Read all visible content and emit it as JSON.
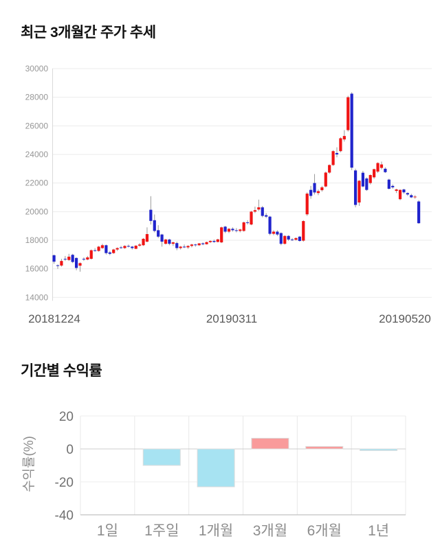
{
  "page": {
    "background": "#ffffff"
  },
  "chart_data": [
    {
      "type": "candlestick",
      "title": "최근 3개월간 주가 추세",
      "x_labels": [
        "20181224",
        "20190311",
        "20190520"
      ],
      "y_ticks": [
        30000,
        28000,
        26000,
        24000,
        22000,
        20000,
        18000,
        16000,
        14000
      ],
      "ylim": [
        14000,
        30000
      ],
      "grid": "horizontal",
      "up_color": "#f01414",
      "down_color": "#2024cc",
      "wick_color": "#999999",
      "axis_color": "#d9d9d9",
      "grid_color": "#ebebeb",
      "y_label_color": "#969696",
      "x_label_color": "#595959",
      "candles_ohlc": [
        [
          16950,
          17000,
          16350,
          16500
        ],
        [
          16250,
          16300,
          16000,
          16200
        ],
        [
          16230,
          16700,
          16150,
          16550
        ],
        [
          16700,
          16900,
          16550,
          16650
        ],
        [
          16620,
          17050,
          16550,
          16850
        ],
        [
          16980,
          17050,
          16400,
          16480
        ],
        [
          16760,
          16800,
          15900,
          16060
        ],
        [
          16220,
          16450,
          15800,
          16400
        ],
        [
          16700,
          16800,
          16550,
          16650
        ],
        [
          16650,
          16900,
          16600,
          16800
        ],
        [
          16700,
          17350,
          16650,
          17300
        ],
        [
          17300,
          17450,
          17200,
          17250
        ],
        [
          17250,
          17600,
          17200,
          17550
        ],
        [
          17450,
          17750,
          17400,
          17650
        ],
        [
          17650,
          17700,
          17000,
          17100
        ],
        [
          17150,
          17250,
          16950,
          17050
        ],
        [
          17100,
          17400,
          17050,
          17350
        ],
        [
          17350,
          17500,
          17250,
          17450
        ],
        [
          17500,
          17600,
          17400,
          17480
        ],
        [
          17450,
          17650,
          17400,
          17600
        ],
        [
          17600,
          17700,
          17500,
          17550
        ],
        [
          17550,
          17600,
          17350,
          17450
        ],
        [
          17400,
          17650,
          17380,
          17620
        ],
        [
          17620,
          17800,
          17550,
          17700
        ],
        [
          17650,
          18150,
          17600,
          18100
        ],
        [
          17900,
          18900,
          17850,
          18430
        ],
        [
          20130,
          21080,
          19100,
          19350
        ],
        [
          19400,
          19800,
          18550,
          18650
        ],
        [
          18700,
          19050,
          18150,
          18250
        ],
        [
          18400,
          18450,
          17550,
          17900
        ],
        [
          17750,
          18100,
          17700,
          18050
        ],
        [
          18050,
          18100,
          17650,
          17750
        ],
        [
          17750,
          17900,
          17600,
          17850
        ],
        [
          17800,
          17900,
          17300,
          17450
        ],
        [
          17450,
          17600,
          17350,
          17550
        ],
        [
          17550,
          17700,
          17450,
          17500
        ],
        [
          17500,
          17650,
          17400,
          17600
        ],
        [
          17600,
          17750,
          17500,
          17700
        ],
        [
          17700,
          17750,
          17550,
          17650
        ],
        [
          17650,
          17800,
          17600,
          17780
        ],
        [
          17780,
          17850,
          17650,
          17720
        ],
        [
          17720,
          17900,
          17700,
          17870
        ],
        [
          17870,
          18000,
          17800,
          17950
        ],
        [
          17950,
          18050,
          17820,
          17880
        ],
        [
          17880,
          18100,
          17850,
          18060
        ],
        [
          17850,
          18950,
          17800,
          18900
        ],
        [
          18950,
          19000,
          18500,
          18600
        ],
        [
          18600,
          18850,
          18500,
          18800
        ],
        [
          18800,
          18900,
          18600,
          18700
        ],
        [
          18700,
          18850,
          18550,
          18650
        ],
        [
          18650,
          18800,
          18550,
          18750
        ],
        [
          18650,
          19300,
          18600,
          19250
        ],
        [
          19250,
          19400,
          19100,
          19200
        ],
        [
          19100,
          20050,
          19050,
          20000
        ],
        [
          20000,
          20350,
          19900,
          20100
        ],
        [
          20150,
          20840,
          20050,
          20300
        ],
        [
          20300,
          20400,
          19600,
          19700
        ],
        [
          19750,
          19900,
          19550,
          19650
        ],
        [
          19650,
          19700,
          18350,
          18450
        ],
        [
          18450,
          18700,
          18350,
          18600
        ],
        [
          18600,
          18700,
          18300,
          18400
        ],
        [
          18500,
          18550,
          17650,
          17750
        ],
        [
          17750,
          18350,
          17700,
          18300
        ],
        [
          18300,
          18350,
          17950,
          18050
        ],
        [
          18050,
          18150,
          17950,
          18030
        ],
        [
          18030,
          18200,
          17980,
          18150
        ],
        [
          18250,
          18300,
          17900,
          17950
        ],
        [
          17970,
          19400,
          17900,
          19340
        ],
        [
          19810,
          21350,
          19700,
          21260
        ],
        [
          21520,
          21800,
          20900,
          21100
        ],
        [
          22000,
          22630,
          21200,
          21340
        ],
        [
          21300,
          21550,
          21150,
          21430
        ],
        [
          21500,
          21800,
          21400,
          21700
        ],
        [
          21760,
          22800,
          21700,
          22730
        ],
        [
          22730,
          23300,
          22650,
          23260
        ],
        [
          23260,
          24300,
          23200,
          24230
        ],
        [
          24100,
          24500,
          23800,
          24000
        ],
        [
          24230,
          25200,
          24150,
          25130
        ],
        [
          25050,
          25700,
          24900,
          25290
        ],
        [
          25700,
          28100,
          25600,
          28000
        ],
        [
          28250,
          28350,
          22900,
          23075
        ],
        [
          22880,
          23000,
          20300,
          20470
        ],
        [
          20640,
          22200,
          20400,
          22160
        ],
        [
          22720,
          22850,
          21700,
          21760
        ],
        [
          22320,
          22400,
          21450,
          21520
        ],
        [
          22000,
          22600,
          21900,
          22560
        ],
        [
          22400,
          23000,
          22300,
          22970
        ],
        [
          22800,
          23450,
          22700,
          23400
        ],
        [
          23060,
          23500,
          22950,
          23300
        ],
        [
          23000,
          23100,
          22700,
          22760
        ],
        [
          22240,
          22300,
          21550,
          21600
        ],
        [
          21800,
          21900,
          21600,
          21700
        ],
        [
          21450,
          21600,
          21300,
          21550
        ],
        [
          20870,
          21550,
          20800,
          21520
        ],
        [
          21550,
          21600,
          21250,
          21350
        ],
        [
          21300,
          21350,
          21100,
          21200
        ],
        [
          21150,
          21250,
          20950,
          21000
        ],
        [
          21050,
          21150,
          20900,
          21050
        ],
        [
          20710,
          20800,
          19150,
          19190
        ]
      ]
    },
    {
      "type": "bar",
      "title": "기간별 수익률",
      "ylabel": "수익률(%)",
      "categories": [
        "1일",
        "1주일",
        "1개월",
        "3개월",
        "6개월",
        "1년"
      ],
      "values": [
        0,
        -10,
        -23,
        6.5,
        1.5,
        -1
      ],
      "y_ticks": [
        20,
        0,
        -20,
        -40
      ],
      "ylim": [
        -40,
        20
      ],
      "grid": "both",
      "positive_color": "#f99b9b",
      "negative_color": "#a7e3f2",
      "bar_border_color": "#dcdcdc",
      "zero_line_color": "#cccccc",
      "bottom_line_color": "#b3b3b3",
      "grid_color": "#ededed",
      "tick_label_color": "#707070",
      "category_label_color": "#8c8c8c"
    }
  ]
}
